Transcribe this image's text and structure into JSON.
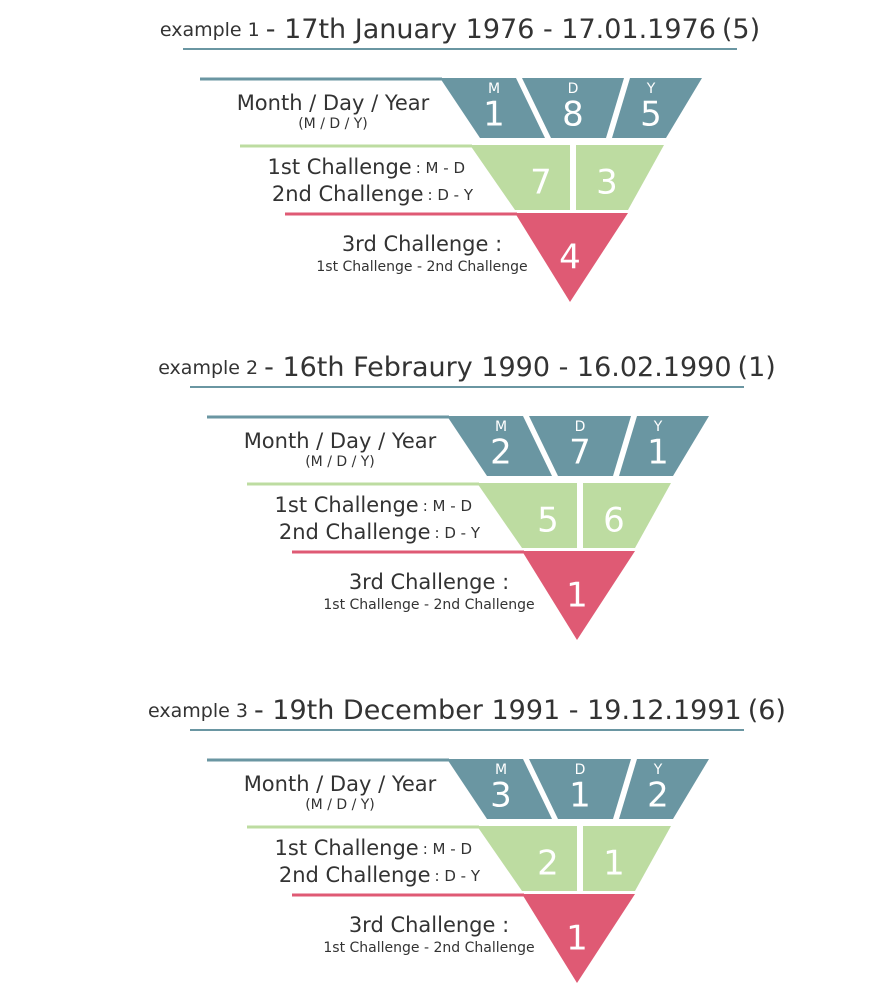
{
  "examples": [
    {
      "label": "example 1",
      "title": "- 17th January 1976 -  17.01.1976",
      "result": "(5)",
      "date_row": {
        "label": "Month / Day / Year",
        "sublabel": "(M  /  D  /  Y)",
        "cells": [
          {
            "letter": "M",
            "digit": 1
          },
          {
            "letter": "D",
            "digit": 8
          },
          {
            "letter": "Y",
            "digit": 5
          }
        ]
      },
      "challenge_row": {
        "first": "1st Challenge",
        "first_formula": ": M - D",
        "second": "2nd Challenge",
        "second_formula": ": D - Y",
        "values": [
          7,
          3
        ]
      },
      "third_row": {
        "label": "3rd Challenge :",
        "formula": "1st Challenge - 2nd Challenge",
        "value": 4
      }
    },
    {
      "label": "example 2",
      "title": "- 16th Febraury 1990 -  16.02.1990",
      "result": "(1)",
      "date_row": {
        "label": "Month / Day / Year",
        "sublabel": "(M  /  D  /  Y)",
        "cells": [
          {
            "letter": "M",
            "digit": 2
          },
          {
            "letter": "D",
            "digit": 7
          },
          {
            "letter": "Y",
            "digit": 1
          }
        ]
      },
      "challenge_row": {
        "first": "1st Challenge",
        "first_formula": ": M - D",
        "second": "2nd Challenge",
        "second_formula": ": D - Y",
        "values": [
          5,
          6
        ]
      },
      "third_row": {
        "label": "3rd Challenge :",
        "formula": "1st Challenge - 2nd Challenge",
        "value": 1
      }
    },
    {
      "label": "example 3",
      "title": "- 19th December 1991 -  19.12.1991",
      "result": "(6)",
      "date_row": {
        "label": "Month / Day / Year",
        "sublabel": "(M  /  D  /  Y)",
        "cells": [
          {
            "letter": "M",
            "digit": 3
          },
          {
            "letter": "D",
            "digit": 1
          },
          {
            "letter": "Y",
            "digit": 2
          }
        ]
      },
      "challenge_row": {
        "first": "1st Challenge",
        "first_formula": ": M - D",
        "second": "2nd Challenge",
        "second_formula": ": D - Y",
        "values": [
          2,
          1
        ]
      },
      "third_row": {
        "label": "3rd Challenge :",
        "formula": "1st Challenge - 2nd Challenge",
        "value": 1
      }
    }
  ]
}
